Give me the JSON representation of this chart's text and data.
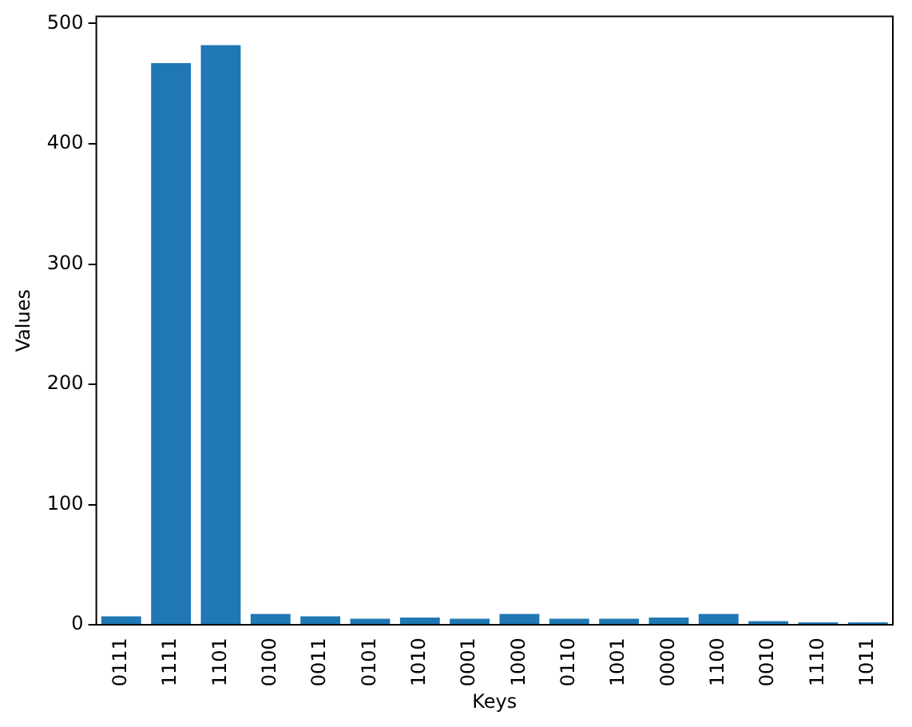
{
  "chart_data": {
    "type": "bar",
    "xlabel": "Keys",
    "ylabel": "Values",
    "categories": [
      "0111",
      "1111",
      "1101",
      "0100",
      "0011",
      "0101",
      "1010",
      "0001",
      "1000",
      "0110",
      "1001",
      "0000",
      "1100",
      "0010",
      "1110",
      "1011"
    ],
    "values": [
      7,
      467,
      482,
      9,
      7,
      5,
      6,
      5,
      9,
      5,
      5,
      6,
      9,
      3,
      2,
      2
    ],
    "color": "#1f77b4",
    "ylim": [
      0,
      506
    ],
    "yticks": [
      0,
      100,
      200,
      300,
      400,
      500
    ],
    "grid": false,
    "legend": false
  }
}
